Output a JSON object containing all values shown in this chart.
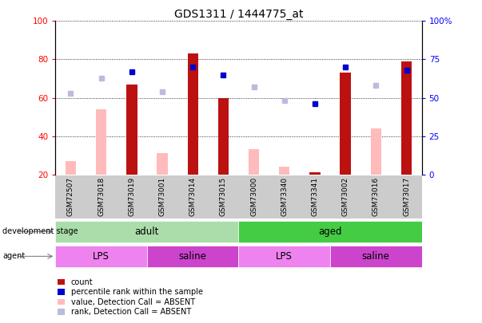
{
  "title": "GDS1311 / 1444775_at",
  "samples": [
    "GSM72507",
    "GSM73018",
    "GSM73019",
    "GSM73001",
    "GSM73014",
    "GSM73015",
    "GSM73000",
    "GSM73340",
    "GSM73341",
    "GSM73002",
    "GSM73016",
    "GSM73017"
  ],
  "count_values": [
    null,
    null,
    67,
    null,
    83,
    60,
    null,
    null,
    21,
    73,
    null,
    79
  ],
  "count_absent_values": [
    27,
    54,
    null,
    31,
    null,
    null,
    33,
    24,
    null,
    null,
    44,
    null
  ],
  "percentile_values": [
    null,
    null,
    67,
    null,
    70,
    65,
    null,
    null,
    46,
    70,
    null,
    68
  ],
  "percentile_absent_values": [
    53,
    63,
    null,
    54,
    null,
    null,
    57,
    48,
    null,
    null,
    58,
    null
  ],
  "ylim": [
    20,
    100
  ],
  "yticks_left": [
    20,
    40,
    60,
    80,
    100
  ],
  "yticks_right": [
    0,
    25,
    50,
    75,
    100
  ],
  "development_stage_groups": [
    {
      "label": "adult",
      "start": 0,
      "end": 6,
      "color": "#aaddaa"
    },
    {
      "label": "aged",
      "start": 6,
      "end": 12,
      "color": "#44cc44"
    }
  ],
  "agent_groups": [
    {
      "label": "LPS",
      "start": 0,
      "end": 3,
      "color": "#ee82ee"
    },
    {
      "label": "saline",
      "start": 3,
      "end": 6,
      "color": "#cc44cc"
    },
    {
      "label": "LPS",
      "start": 6,
      "end": 9,
      "color": "#ee82ee"
    },
    {
      "label": "saline",
      "start": 9,
      "end": 12,
      "color": "#cc44cc"
    }
  ],
  "bar_width": 0.5,
  "color_count": "#bb1111",
  "color_percentile": "#0000cc",
  "color_count_absent": "#ffbbbb",
  "color_percentile_absent": "#bbbbdd",
  "legend_items": [
    {
      "label": "count",
      "color": "#bb1111"
    },
    {
      "label": "percentile rank within the sample",
      "color": "#0000cc"
    },
    {
      "label": "value, Detection Call = ABSENT",
      "color": "#ffbbbb"
    },
    {
      "label": "rank, Detection Call = ABSENT",
      "color": "#bbbbdd"
    }
  ],
  "xticklabel_bg": "#cccccc"
}
